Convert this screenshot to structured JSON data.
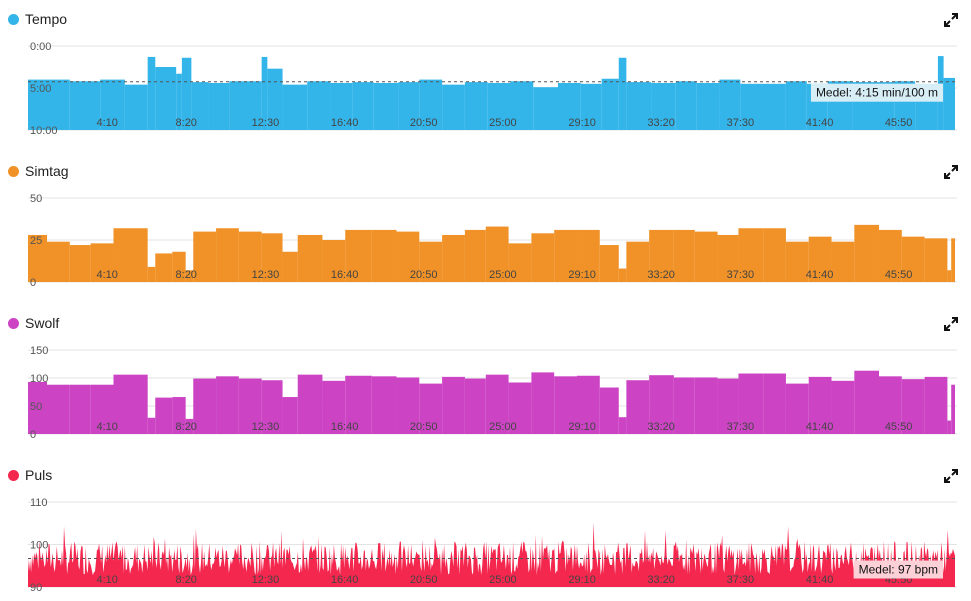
{
  "chart_data": [
    {
      "type": "area",
      "title": "Tempo",
      "color": "#33b5ea",
      "avg_label": "Medel: 4:15 min/100 m",
      "avg_bg": "#d7eef6",
      "avg_value": 4.25,
      "yticks": [
        "0:00",
        "5:00",
        "10:00"
      ],
      "ytick_values": [
        0,
        5,
        10
      ],
      "ylim": [
        0,
        10
      ],
      "inverted": true,
      "xticks": [
        "4:10",
        "8:20",
        "12:30",
        "16:40",
        "20:50",
        "25:00",
        "29:10",
        "33:20",
        "37:30",
        "41:40",
        "45:50"
      ],
      "xtick_values": [
        4.17,
        8.33,
        12.5,
        16.67,
        20.83,
        25.0,
        29.17,
        33.33,
        37.5,
        41.67,
        45.83
      ],
      "xlim": [
        0,
        48.8
      ],
      "bars": [
        [
          0,
          2.2,
          4.0
        ],
        [
          2.2,
          3.8,
          4.2
        ],
        [
          3.8,
          5.1,
          4.0
        ],
        [
          5.1,
          6.3,
          4.6
        ],
        [
          6.3,
          6.7,
          1.3
        ],
        [
          6.7,
          7.8,
          2.5
        ],
        [
          7.8,
          8.1,
          3.3
        ],
        [
          8.1,
          8.6,
          1.4
        ],
        [
          8.6,
          9.5,
          4.3
        ],
        [
          9.5,
          10.6,
          4.4
        ],
        [
          10.6,
          12.3,
          4.2
        ],
        [
          12.3,
          12.6,
          1.3
        ],
        [
          12.6,
          13.4,
          2.7
        ],
        [
          13.4,
          14.7,
          4.6
        ],
        [
          14.7,
          15.9,
          4.2
        ],
        [
          15.9,
          17.1,
          4.4
        ],
        [
          17.1,
          18.2,
          4.3
        ],
        [
          18.2,
          19.5,
          4.4
        ],
        [
          19.5,
          20.6,
          4.3
        ],
        [
          20.6,
          21.8,
          4.0
        ],
        [
          21.8,
          23.0,
          4.6
        ],
        [
          23.0,
          24.2,
          4.3
        ],
        [
          24.2,
          25.4,
          4.4
        ],
        [
          25.4,
          26.6,
          4.2
        ],
        [
          26.6,
          27.9,
          4.9
        ],
        [
          27.9,
          29.1,
          4.4
        ],
        [
          29.1,
          30.2,
          4.5
        ],
        [
          30.2,
          31.1,
          3.9
        ],
        [
          31.1,
          31.5,
          1.4
        ],
        [
          31.5,
          32.8,
          4.3
        ],
        [
          32.8,
          34.1,
          4.4
        ],
        [
          34.1,
          35.2,
          4.2
        ],
        [
          35.2,
          36.4,
          4.4
        ],
        [
          36.4,
          37.5,
          4.0
        ],
        [
          37.5,
          39.9,
          4.5
        ],
        [
          39.9,
          41.0,
          4.2
        ],
        [
          41.0,
          42.1,
          4.5
        ],
        [
          42.1,
          43.4,
          4.2
        ],
        [
          43.4,
          45.6,
          4.3
        ],
        [
          45.6,
          46.7,
          4.2
        ],
        [
          46.7,
          47.9,
          4.6
        ],
        [
          47.9,
          48.2,
          1.2
        ],
        [
          48.2,
          48.8,
          3.8
        ]
      ]
    },
    {
      "type": "area",
      "title": "Simtag",
      "color": "#f09227",
      "yticks": [
        "50",
        "25",
        "0"
      ],
      "ytick_values": [
        50,
        25,
        0
      ],
      "ylim": [
        0,
        50
      ],
      "inverted": false,
      "xticks": [
        "4:10",
        "8:20",
        "12:30",
        "16:40",
        "20:50",
        "25:00",
        "29:10",
        "33:20",
        "37:30",
        "41:40",
        "45:50"
      ],
      "xtick_values": [
        4.17,
        8.33,
        12.5,
        16.67,
        20.83,
        25.0,
        29.17,
        33.33,
        37.5,
        41.67,
        45.83
      ],
      "xlim": [
        0,
        48.8
      ],
      "bars": [
        [
          0,
          1.0,
          28
        ],
        [
          1.0,
          2.2,
          24
        ],
        [
          2.2,
          3.3,
          22
        ],
        [
          3.3,
          4.5,
          23
        ],
        [
          4.5,
          6.3,
          32
        ],
        [
          6.3,
          6.7,
          9
        ],
        [
          6.7,
          7.6,
          17
        ],
        [
          7.6,
          8.3,
          18
        ],
        [
          8.3,
          8.7,
          7
        ],
        [
          8.7,
          9.9,
          30
        ],
        [
          9.9,
          11.1,
          32
        ],
        [
          11.1,
          12.3,
          30
        ],
        [
          12.3,
          13.4,
          29
        ],
        [
          13.4,
          14.2,
          18
        ],
        [
          14.2,
          15.5,
          28
        ],
        [
          15.5,
          16.7,
          25
        ],
        [
          16.7,
          18.1,
          31
        ],
        [
          18.1,
          19.4,
          31
        ],
        [
          19.4,
          20.6,
          30
        ],
        [
          20.6,
          21.8,
          24
        ],
        [
          21.8,
          23.0,
          28
        ],
        [
          23.0,
          24.1,
          31
        ],
        [
          24.1,
          25.3,
          33
        ],
        [
          25.3,
          26.5,
          23
        ],
        [
          26.5,
          27.7,
          29
        ],
        [
          27.7,
          28.9,
          31
        ],
        [
          28.9,
          30.1,
          31
        ],
        [
          30.1,
          31.1,
          22
        ],
        [
          31.1,
          31.5,
          8
        ],
        [
          31.5,
          32.7,
          24
        ],
        [
          32.7,
          34.0,
          31
        ],
        [
          34.0,
          35.1,
          31
        ],
        [
          35.1,
          36.3,
          30
        ],
        [
          36.3,
          37.4,
          28
        ],
        [
          37.4,
          38.7,
          32
        ],
        [
          38.7,
          39.9,
          32
        ],
        [
          39.9,
          41.1,
          24
        ],
        [
          41.1,
          42.3,
          27
        ],
        [
          42.3,
          43.5,
          24
        ],
        [
          43.5,
          44.8,
          34
        ],
        [
          44.8,
          46.0,
          31
        ],
        [
          46.0,
          47.2,
          27
        ],
        [
          47.2,
          48.4,
          26
        ],
        [
          48.4,
          48.6,
          7
        ],
        [
          48.6,
          49.6,
          26
        ]
      ]
    },
    {
      "type": "area",
      "title": "Swolf",
      "color": "#cc44c4",
      "yticks": [
        "150",
        "100",
        "50",
        "0"
      ],
      "ytick_values": [
        150,
        100,
        50,
        0
      ],
      "ylim": [
        0,
        150
      ],
      "inverted": false,
      "xticks": [
        "4:10",
        "8:20",
        "12:30",
        "16:40",
        "20:50",
        "25:00",
        "29:10",
        "33:20",
        "37:30",
        "41:40",
        "45:50"
      ],
      "xtick_values": [
        4.17,
        8.33,
        12.5,
        16.67,
        20.83,
        25.0,
        29.17,
        33.33,
        37.5,
        41.67,
        45.83
      ],
      "xlim": [
        0,
        48.8
      ],
      "bars": [
        [
          0,
          1.0,
          93
        ],
        [
          1.0,
          2.2,
          88
        ],
        [
          2.2,
          3.3,
          88
        ],
        [
          3.3,
          4.5,
          88
        ],
        [
          4.5,
          6.3,
          106
        ],
        [
          6.3,
          6.7,
          29
        ],
        [
          6.7,
          7.6,
          65
        ],
        [
          7.6,
          8.3,
          66
        ],
        [
          8.3,
          8.7,
          27
        ],
        [
          8.7,
          9.9,
          99
        ],
        [
          9.9,
          11.1,
          103
        ],
        [
          11.1,
          12.3,
          99
        ],
        [
          12.3,
          13.4,
          96
        ],
        [
          13.4,
          14.2,
          66
        ],
        [
          14.2,
          15.5,
          106
        ],
        [
          15.5,
          16.7,
          95
        ],
        [
          16.7,
          18.1,
          104
        ],
        [
          18.1,
          19.4,
          103
        ],
        [
          19.4,
          20.6,
          101
        ],
        [
          20.6,
          21.8,
          90
        ],
        [
          21.8,
          23.0,
          102
        ],
        [
          23.0,
          24.1,
          99
        ],
        [
          24.1,
          25.3,
          106
        ],
        [
          25.3,
          26.5,
          92
        ],
        [
          26.5,
          27.7,
          110
        ],
        [
          27.7,
          28.9,
          103
        ],
        [
          28.9,
          30.1,
          104
        ],
        [
          30.1,
          31.1,
          83
        ],
        [
          31.1,
          31.5,
          30
        ],
        [
          31.5,
          32.7,
          96
        ],
        [
          32.7,
          34.0,
          105
        ],
        [
          34.0,
          35.1,
          101
        ],
        [
          35.1,
          36.3,
          101
        ],
        [
          36.3,
          37.4,
          99
        ],
        [
          37.4,
          38.7,
          108
        ],
        [
          38.7,
          39.9,
          108
        ],
        [
          39.9,
          41.1,
          90
        ],
        [
          41.1,
          42.3,
          102
        ],
        [
          42.3,
          43.5,
          95
        ],
        [
          43.5,
          44.8,
          113
        ],
        [
          44.8,
          46.0,
          103
        ],
        [
          46.0,
          47.2,
          98
        ],
        [
          47.2,
          48.4,
          102
        ],
        [
          48.4,
          48.6,
          24
        ],
        [
          48.6,
          49.6,
          88
        ]
      ]
    },
    {
      "type": "area",
      "title": "Puls",
      "color": "#f4284f",
      "avg_label": "Medel: 97 bpm",
      "avg_bg": "#fbd0d6",
      "avg_value": 96.7,
      "yticks": [
        "110",
        "100",
        "90"
      ],
      "ytick_values": [
        110,
        100,
        90
      ],
      "ylim": [
        90,
        110
      ],
      "inverted": false,
      "xticks": [
        "4:10",
        "8:20",
        "12:30",
        "16:40",
        "20:50",
        "25:00",
        "29:10",
        "33:20",
        "37:30",
        "41:40",
        "45:50"
      ],
      "xtick_values": [
        4.17,
        8.33,
        12.5,
        16.67,
        20.83,
        25.0,
        29.17,
        33.33,
        37.5,
        41.67,
        45.83
      ],
      "xlim": [
        0,
        48.8
      ],
      "noise_base": 96,
      "noise_amp": 4,
      "noise_points": 900
    }
  ]
}
